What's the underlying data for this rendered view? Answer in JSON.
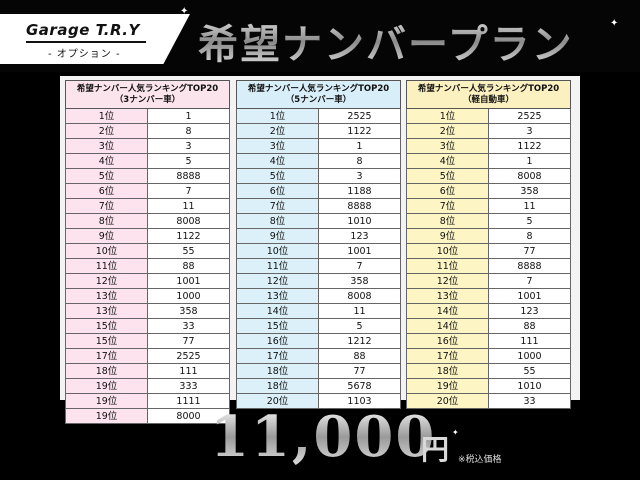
{
  "header": {
    "logo_main": "Garage T.R.Y",
    "logo_sub": "- オプション -",
    "title": "希望ナンバープラン"
  },
  "tables": [
    {
      "title_line1": "希望ナンバー人気ランキングTOP20",
      "title_line2": "（3ナンバー車）",
      "color": "#fde3ee",
      "rows": [
        {
          "rank": "1位",
          "number": "1"
        },
        {
          "rank": "2位",
          "number": "8"
        },
        {
          "rank": "3位",
          "number": "3"
        },
        {
          "rank": "4位",
          "number": "5"
        },
        {
          "rank": "5位",
          "number": "8888"
        },
        {
          "rank": "6位",
          "number": "7"
        },
        {
          "rank": "7位",
          "number": "11"
        },
        {
          "rank": "8位",
          "number": "8008"
        },
        {
          "rank": "9位",
          "number": "1122"
        },
        {
          "rank": "10位",
          "number": "55"
        },
        {
          "rank": "11位",
          "number": "88"
        },
        {
          "rank": "12位",
          "number": "1001"
        },
        {
          "rank": "13位",
          "number": "1000"
        },
        {
          "rank": "13位",
          "number": "358"
        },
        {
          "rank": "15位",
          "number": "33"
        },
        {
          "rank": "15位",
          "number": "77"
        },
        {
          "rank": "17位",
          "number": "2525"
        },
        {
          "rank": "18位",
          "number": "111"
        },
        {
          "rank": "19位",
          "number": "333"
        },
        {
          "rank": "19位",
          "number": "1111"
        },
        {
          "rank": "19位",
          "number": "8000"
        }
      ]
    },
    {
      "title_line1": "希望ナンバー人気ランキングTOP20",
      "title_line2": "（5ナンバー車）",
      "color": "#dcf0f9",
      "rows": [
        {
          "rank": "1位",
          "number": "2525"
        },
        {
          "rank": "2位",
          "number": "1122"
        },
        {
          "rank": "3位",
          "number": "1"
        },
        {
          "rank": "4位",
          "number": "8"
        },
        {
          "rank": "5位",
          "number": "3"
        },
        {
          "rank": "6位",
          "number": "1188"
        },
        {
          "rank": "7位",
          "number": "8888"
        },
        {
          "rank": "8位",
          "number": "1010"
        },
        {
          "rank": "9位",
          "number": "123"
        },
        {
          "rank": "10位",
          "number": "1001"
        },
        {
          "rank": "11位",
          "number": "7"
        },
        {
          "rank": "12位",
          "number": "358"
        },
        {
          "rank": "13位",
          "number": "8008"
        },
        {
          "rank": "14位",
          "number": "11"
        },
        {
          "rank": "15位",
          "number": "5"
        },
        {
          "rank": "16位",
          "number": "1212"
        },
        {
          "rank": "17位",
          "number": "88"
        },
        {
          "rank": "18位",
          "number": "77"
        },
        {
          "rank": "18位",
          "number": "5678"
        },
        {
          "rank": "20位",
          "number": "1103"
        }
      ]
    },
    {
      "title_line1": "希望ナンバー人気ランキングTOP20",
      "title_line2": "（軽自動車）",
      "color": "#fdf5c4",
      "rows": [
        {
          "rank": "1位",
          "number": "2525"
        },
        {
          "rank": "2位",
          "number": "3"
        },
        {
          "rank": "3位",
          "number": "1122"
        },
        {
          "rank": "4位",
          "number": "1"
        },
        {
          "rank": "5位",
          "number": "8008"
        },
        {
          "rank": "6位",
          "number": "358"
        },
        {
          "rank": "7位",
          "number": "11"
        },
        {
          "rank": "8位",
          "number": "5"
        },
        {
          "rank": "9位",
          "number": "8"
        },
        {
          "rank": "10位",
          "number": "77"
        },
        {
          "rank": "11位",
          "number": "8888"
        },
        {
          "rank": "12位",
          "number": "7"
        },
        {
          "rank": "13位",
          "number": "1001"
        },
        {
          "rank": "14位",
          "number": "123"
        },
        {
          "rank": "14位",
          "number": "88"
        },
        {
          "rank": "16位",
          "number": "111"
        },
        {
          "rank": "17位",
          "number": "1000"
        },
        {
          "rank": "18位",
          "number": "55"
        },
        {
          "rank": "19位",
          "number": "1010"
        },
        {
          "rank": "20位",
          "number": "33"
        }
      ]
    }
  ],
  "price": {
    "amount": "11,000",
    "unit": "円",
    "note": "※税込価格"
  }
}
